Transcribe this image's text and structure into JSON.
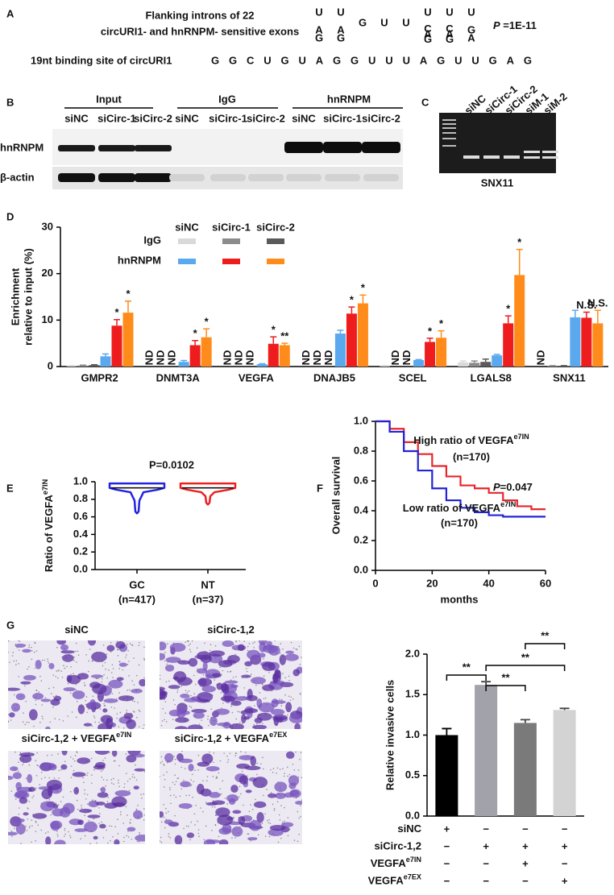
{
  "panel_labels": [
    "A",
    "B",
    "C",
    "D",
    "E",
    "F",
    "G"
  ],
  "motif": {
    "title_lines": [
      "Flanking introns of 22",
      "circURI1- and hnRNPM- sensitive exons"
    ],
    "columns": [
      [
        "U",
        "A",
        "G"
      ],
      [
        "U",
        "A",
        "G"
      ],
      [
        "G"
      ],
      [
        "U"
      ],
      [
        "U"
      ],
      [
        "U",
        "C",
        "A",
        "G"
      ],
      [
        "U",
        "C",
        "A",
        "G"
      ],
      [
        "U",
        "G",
        "A"
      ]
    ],
    "p_label": "P",
    "p_value": " =1E-11",
    "binding_label": "19nt binding site of circURI1",
    "binding_sequence": "GGCUGUAGGUUUAGUUGAG"
  },
  "western": {
    "groups": [
      "Input",
      "IgG",
      "hnRNPM"
    ],
    "lanes": [
      "siNC",
      "siCirc-1",
      "siCirc-2",
      "siNC",
      "siCirc-1",
      "siCirc-2",
      "siNC",
      "siCirc-1",
      "siCirc-2"
    ],
    "rows": [
      "hnRNPM",
      "β-actin"
    ]
  },
  "gel": {
    "lanes": [
      "siNC",
      "siCirc-1",
      "siCirc-2",
      "siM-1",
      "siM-2"
    ],
    "caption": "SNX11"
  },
  "images": {
    "labels": [
      {
        "text": "siNC"
      },
      {
        "text": "siCirc-1,2"
      },
      {
        "text": "siCirc-1,2 + VEGFA",
        "sup": "e7IN"
      },
      {
        "text": "siCirc-1,2 + VEGFA",
        "sup": "e7EX"
      }
    ]
  },
  "chart_data": [
    {
      "type": "groupbar",
      "ylabel": [
        "Enrichment",
        "relative to input (%)"
      ],
      "categories": [
        "GMPR2",
        "DNMT3A",
        "VEGFA",
        "DNAJB5",
        "SCEL",
        "LGALS8",
        "SNX11"
      ],
      "ylim": [
        0,
        30
      ],
      "yticks": [
        0,
        10,
        20,
        30
      ],
      "legend_columns": [
        "siNC",
        "siCirc-1",
        "siCirc-2"
      ],
      "legend_rows": [
        "IgG",
        "hnRNPM"
      ],
      "series": [
        {
          "row": 0,
          "col": 0,
          "color": "#d9d9d9",
          "values": [
            0.1,
            null,
            null,
            null,
            0.1,
            0.9,
            null
          ],
          "errors": [
            0.1,
            null,
            null,
            null,
            0.1,
            0.3,
            null
          ],
          "annotations": [
            null,
            "ND",
            "ND",
            "ND",
            null,
            null,
            "ND"
          ]
        },
        {
          "row": 0,
          "col": 1,
          "color": "#8c8c8c",
          "values": [
            0.2,
            null,
            null,
            null,
            null,
            0.8,
            0.1
          ],
          "errors": [
            0.1,
            null,
            null,
            null,
            null,
            0.4,
            0.1
          ],
          "annotations": [
            null,
            "ND",
            "ND",
            "ND",
            "ND",
            null,
            null
          ]
        },
        {
          "row": 0,
          "col": 2,
          "color": "#5a5a5a",
          "values": [
            0.3,
            null,
            null,
            null,
            null,
            1.0,
            0.1
          ],
          "errors": [
            0.1,
            null,
            null,
            null,
            null,
            0.6,
            0.1
          ],
          "annotations": [
            null,
            "ND",
            "ND",
            "ND",
            "ND",
            null,
            null
          ]
        },
        {
          "row": 1,
          "col": 0,
          "color": "#5aa9ee",
          "values": [
            2.2,
            1.0,
            0.5,
            7.1,
            1.4,
            2.4,
            10.6
          ],
          "errors": [
            0.5,
            0.3,
            0.1,
            0.7,
            0.1,
            0.2,
            1.5
          ],
          "annotations": [
            null,
            null,
            null,
            null,
            null,
            null,
            null
          ]
        },
        {
          "row": 1,
          "col": 1,
          "color": "#ee1c1c",
          "values": [
            8.8,
            4.6,
            4.9,
            11.4,
            5.3,
            9.3,
            10.5
          ],
          "errors": [
            1.3,
            1.0,
            1.5,
            1.4,
            0.8,
            1.6,
            1.2
          ],
          "annotations": [
            "*",
            "*",
            "*",
            "*",
            "*",
            "*",
            "N.S."
          ]
        },
        {
          "row": 1,
          "col": 2,
          "color": "#ff8c1a",
          "values": [
            11.6,
            6.3,
            4.6,
            13.6,
            6.2,
            19.7,
            9.3
          ],
          "errors": [
            2.5,
            1.8,
            0.4,
            1.8,
            1.5,
            5.5,
            2.8
          ],
          "annotations": [
            "*",
            "*",
            "**",
            "*",
            "*",
            "*",
            "N.S."
          ]
        }
      ]
    },
    {
      "type": "violin",
      "title": "P=0.0102",
      "ylabel": "Ratio of VEGFA",
      "ylabel_sup": "e7IN",
      "categories": [
        "GC",
        "NT"
      ],
      "category_notes": [
        "(n=417)",
        "(n=37)"
      ],
      "ylim": [
        0,
        1
      ],
      "yticks": [
        {
          "value": 0,
          "label": "0.0"
        },
        0.2,
        0.4,
        0.6,
        0.8,
        {
          "value": 1,
          "label": "1.0"
        }
      ],
      "colors": [
        "#2323e0",
        "#ee2020"
      ],
      "min": [
        0.64,
        0.74
      ],
      "median": [
        0.93,
        0.93
      ],
      "max": [
        0.98,
        0.98
      ]
    },
    {
      "type": "line",
      "step": true,
      "ylabel": "Overall survival",
      "xlabel": "months",
      "xlim": [
        0,
        60
      ],
      "xticks": [
        0,
        20,
        40,
        60
      ],
      "ylim": [
        0,
        1
      ],
      "yticks": [
        {
          "value": 0,
          "label": "0.0"
        },
        0.2,
        0.4,
        0.6,
        0.8,
        {
          "value": 1,
          "label": "1.0"
        }
      ],
      "annotation_italic": "P",
      "annotation": "=0.047",
      "series": [
        {
          "name": "High ratio of VEGFA",
          "name_sup": "e7IN",
          "n_label": "(n=170)",
          "color": "#e8262b",
          "x": [
            0,
            5,
            10,
            15,
            20,
            25,
            30,
            35,
            40,
            45,
            50,
            55,
            60
          ],
          "values": [
            1,
            0.95,
            0.86,
            0.78,
            0.7,
            0.63,
            0.57,
            0.55,
            0.52,
            0.47,
            0.43,
            0.41,
            0.41
          ]
        },
        {
          "name": "Low ratio of VEGFA",
          "name_sup": "e7IN",
          "n_label": "(n=170)",
          "color": "#2323d6",
          "x": [
            0,
            5,
            10,
            15,
            20,
            25,
            30,
            35,
            40,
            45,
            50,
            55,
            60
          ],
          "values": [
            1,
            0.93,
            0.8,
            0.67,
            0.55,
            0.47,
            0.42,
            0.39,
            0.37,
            0.36,
            0.36,
            0.36,
            0.36
          ]
        }
      ]
    },
    {
      "type": "bar",
      "ylabel": "Relative invasive cells",
      "ylim": [
        0,
        2
      ],
      "yticks": [
        {
          "value": 0,
          "label": "0.0"
        },
        0.5,
        {
          "value": 1,
          "label": "1.0"
        },
        1.5,
        {
          "value": 2,
          "label": "2.0"
        }
      ],
      "values": [
        1.0,
        1.62,
        1.15,
        1.31
      ],
      "errors": [
        0.08,
        0.04,
        0.04,
        0.02
      ],
      "colors": [
        "#000000",
        "#a2a2ab",
        "#7a7a7a",
        "#d3d3d3"
      ],
      "comparisons": [
        {
          "pair": [
            0,
            1
          ],
          "label": "**"
        },
        {
          "pair": [
            1,
            2
          ],
          "label": "**"
        },
        {
          "pair": [
            1,
            3
          ],
          "label": "**"
        },
        {
          "pair": [
            2,
            3
          ],
          "label": "**"
        }
      ],
      "conditions": [
        {
          "label": "siNC",
          "signs": [
            "+",
            "−",
            "−",
            "−"
          ]
        },
        {
          "label": "siCirc-1,2",
          "signs": [
            "−",
            "+",
            "+",
            "+"
          ]
        },
        {
          "label": "VEGFA",
          "sup": "e7IN",
          "signs": [
            "−",
            "−",
            "+",
            "−"
          ]
        },
        {
          "label": "VEGFA",
          "sup": "e7EX",
          "signs": [
            "−",
            "−",
            "−",
            "+"
          ]
        }
      ]
    }
  ]
}
